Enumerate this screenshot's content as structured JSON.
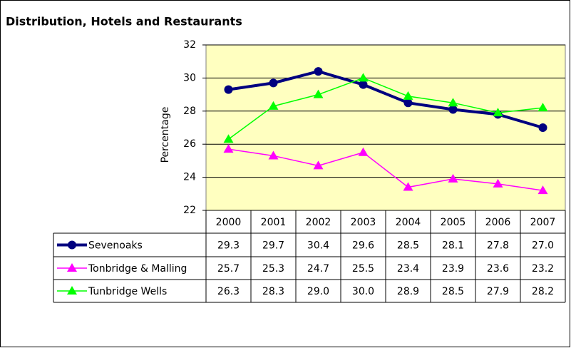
{
  "chart_data": {
    "type": "line",
    "title": "Distribution, Hotels and Restaurants",
    "y_label": "Percentage",
    "categories": [
      "2000",
      "2001",
      "2002",
      "2003",
      "2004",
      "2005",
      "2006",
      "2007"
    ],
    "series": [
      {
        "name": "Sevenoaks",
        "color": "#000080",
        "marker": "circle",
        "values": [
          29.3,
          29.7,
          30.4,
          29.6,
          28.5,
          28.1,
          27.8,
          27
        ],
        "value_labels": [
          "29.3",
          "29.7",
          "30.4",
          "29.6",
          "28.5",
          "28.1",
          "27.8",
          "27.0"
        ]
      },
      {
        "name": "Tonbridge & Malling",
        "color": "#ff00ff",
        "marker": "triangle",
        "values": [
          25.7,
          25.3,
          24.7,
          25.5,
          23.4,
          23.9,
          23.6,
          23.2
        ],
        "value_labels": [
          "25.7",
          "25.3",
          "24.7",
          "25.5",
          "23.4",
          "23.9",
          "23.6",
          "23.2"
        ]
      },
      {
        "name": "Tunbridge Wells",
        "color": "#00ff00",
        "marker": "triangle",
        "values": [
          26.3,
          28.3,
          29,
          30,
          28.9,
          28.5,
          27.9,
          28.2
        ],
        "value_labels": [
          "26.3",
          "28.3",
          "29.0",
          "30.0",
          "28.9",
          "28.5",
          "27.9",
          "28.2"
        ]
      }
    ],
    "ylim": [
      22,
      32
    ],
    "yticks": [
      22,
      24,
      26,
      28,
      30,
      32
    ],
    "grid": true
  }
}
